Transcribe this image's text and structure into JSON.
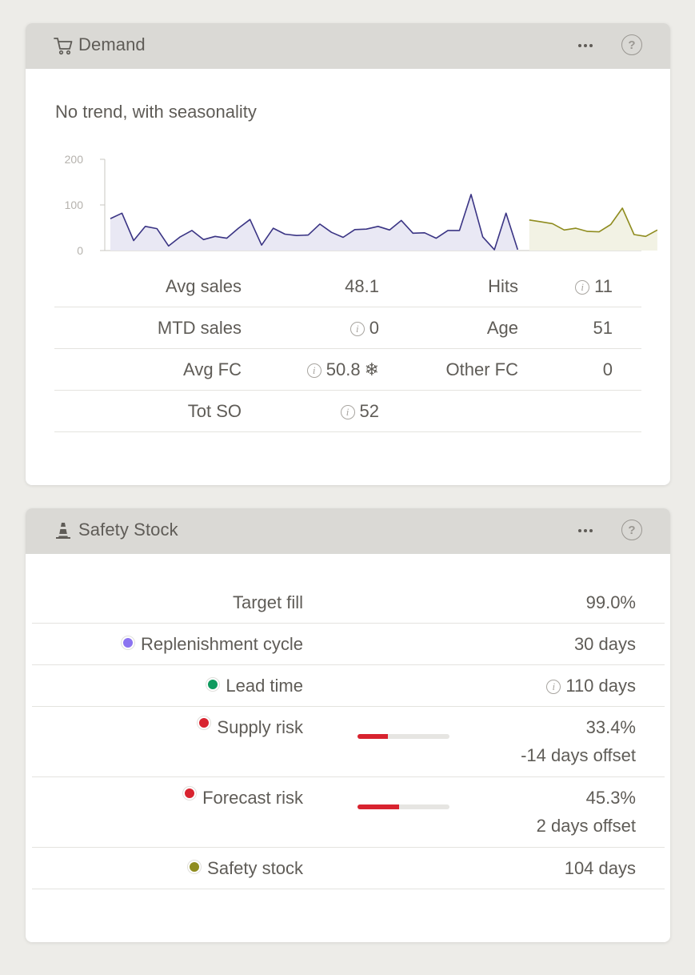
{
  "demand": {
    "title": "Demand",
    "icon": "cart-icon",
    "subtitle": "No trend, with seasonality",
    "stats": [
      {
        "label_a": "Avg sales",
        "value_a": "48.1",
        "info_a": false,
        "snow_a": false,
        "label_b": "Hits",
        "value_b": "11",
        "info_b": true
      },
      {
        "label_a": "MTD sales",
        "value_a": "0",
        "info_a": true,
        "snow_a": false,
        "label_b": "Age",
        "value_b": "51",
        "info_b": false
      },
      {
        "label_a": "Avg FC",
        "value_a": "50.8",
        "info_a": true,
        "snow_a": true,
        "label_b": "Other FC",
        "value_b": "0",
        "info_b": false
      },
      {
        "label_a": "Tot SO",
        "value_a": "52",
        "info_a": true,
        "snow_a": false,
        "label_b": "",
        "value_b": "",
        "info_b": false
      }
    ]
  },
  "chart_data": {
    "type": "area",
    "title": "",
    "xlabel": "",
    "ylabel": "",
    "ylim": [
      0,
      200
    ],
    "yticks": [
      0,
      100,
      200
    ],
    "grid": false,
    "series": [
      {
        "role": "history",
        "color": "#3a3484",
        "fill": "#e9e8f4",
        "values": [
          70,
          82,
          22,
          53,
          48,
          10,
          30,
          44,
          24,
          31,
          27,
          49,
          68,
          12,
          49,
          36,
          33,
          34,
          58,
          40,
          29,
          46,
          47,
          53,
          45,
          66,
          38,
          39,
          27,
          44,
          44,
          123,
          30,
          2,
          82,
          2
        ]
      },
      {
        "role": "forecast",
        "color": "#8f8c1f",
        "fill": "#f2f2e4",
        "values": [
          67,
          63,
          59,
          45,
          49,
          42,
          41,
          57,
          93,
          35,
          31,
          45
        ]
      }
    ]
  },
  "safety": {
    "title": "Safety Stock",
    "icon": "traffic-cone-icon",
    "rows": [
      {
        "label": "Target fill",
        "value": "99.0%",
        "value2": "",
        "dot": "",
        "info": false,
        "bar": null
      },
      {
        "label": "Replenishment cycle",
        "value": "30 days",
        "value2": "",
        "dot": "#8b73f0",
        "info": false,
        "bar": null
      },
      {
        "label": "Lead time",
        "value": "110 days",
        "value2": "",
        "dot": "#0f9a5e",
        "info": true,
        "bar": null
      },
      {
        "label": "Supply risk",
        "value": "33.4%",
        "value2": "-14 days offset",
        "dot": "#d8232f",
        "info": false,
        "bar": 0.334
      },
      {
        "label": "Forecast risk",
        "value": "45.3%",
        "value2": "2 days offset",
        "dot": "#d8232f",
        "info": false,
        "bar": 0.453
      },
      {
        "label": "Safety stock",
        "value": "104 days",
        "value2": "",
        "dot": "#8f8c1f",
        "info": false,
        "bar": null
      }
    ]
  },
  "colors": {
    "background": "#edece8",
    "header": "#dad9d5",
    "text": "#5f5c57",
    "risk_red": "#d8232f"
  }
}
